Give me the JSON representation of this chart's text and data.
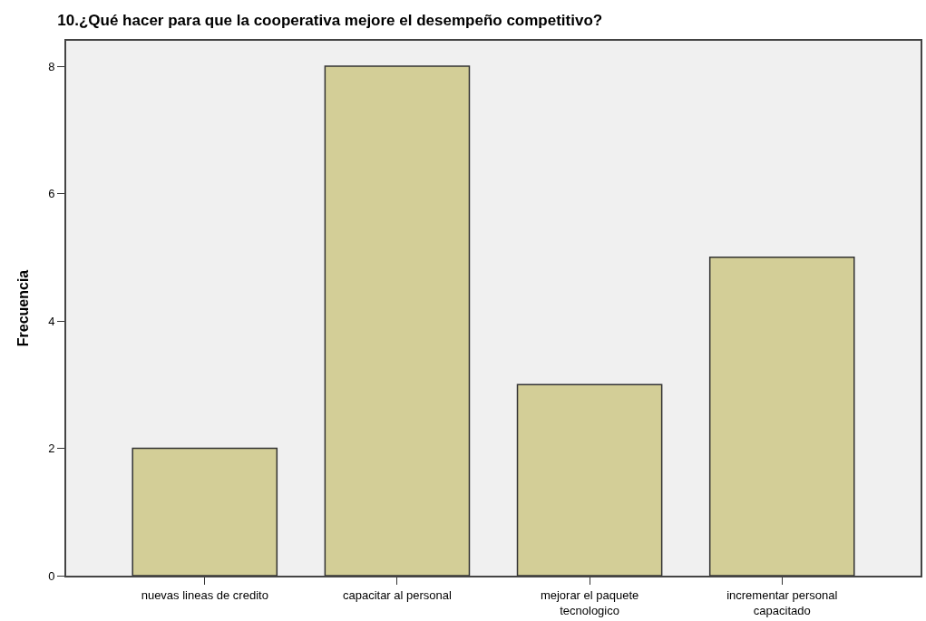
{
  "chart_data": {
    "type": "bar",
    "title": "10.¿Qué hacer para que la cooperativa mejore el desempeño competitivo?",
    "ylabel": "Frecuencia",
    "categories": [
      "nuevas lineas de credito",
      "capacitar al personal",
      "mejorar el paquete tecnologico",
      "incrementar personal capacitado"
    ],
    "values": [
      2,
      8,
      3,
      5
    ],
    "color": "#d3ce97",
    "ylim": [
      0,
      8.4
    ],
    "yticks": [
      0,
      2,
      4,
      6,
      8
    ],
    "grid": false
  }
}
